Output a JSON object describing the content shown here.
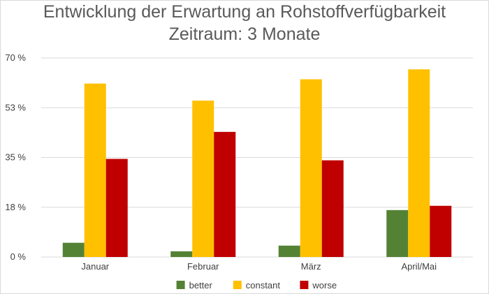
{
  "chart_data": {
    "type": "bar",
    "title_line1": "Entwicklung der Erwartung an Rohstoffverfügbarkeit",
    "title_line2": "Zeitraum: 3 Monate",
    "categories": [
      "Januar",
      "Februar",
      "März",
      "April/Mai"
    ],
    "series": [
      {
        "name": "better",
        "values": [
          5,
          2,
          4,
          16.5
        ],
        "color": "#548235"
      },
      {
        "name": "constant",
        "values": [
          61,
          55,
          62.5,
          66
        ],
        "color": "#ffc000"
      },
      {
        "name": "worse",
        "values": [
          34.5,
          44,
          34,
          18
        ],
        "color": "#c00000"
      }
    ],
    "ylim": [
      0,
      70
    ],
    "yticks": [
      {
        "value": 0,
        "label": "0 %"
      },
      {
        "value": 17.5,
        "label": "18 %"
      },
      {
        "value": 35,
        "label": "35 %"
      },
      {
        "value": 52.5,
        "label": "53 %"
      },
      {
        "value": 70,
        "label": "70 %"
      }
    ],
    "grid": true,
    "legend_position": "bottom"
  }
}
